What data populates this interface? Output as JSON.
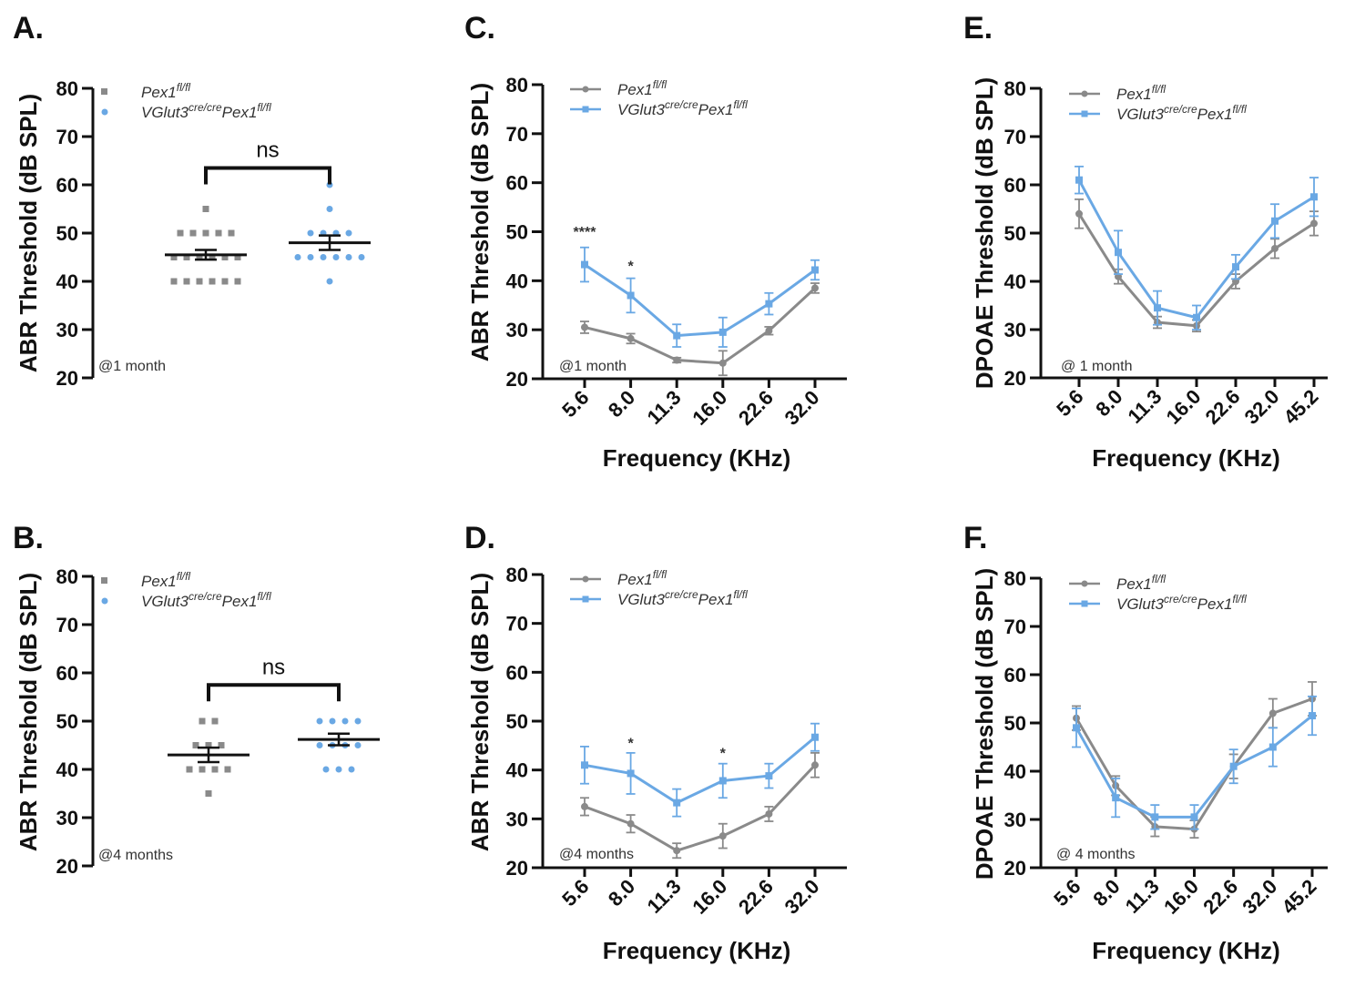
{
  "colors": {
    "control": "#8a8a8a",
    "mutant": "#6aa8e4",
    "axis": "#111111"
  },
  "chart_data": [
    {
      "panel": "A.",
      "type": "scatter",
      "ylabel": "ABR Threshold (dB SPL)",
      "ylim": [
        20,
        80
      ],
      "yticks": [
        "20",
        "30",
        "40",
        "50",
        "60",
        "70",
        "80"
      ],
      "legend": [
        {
          "base": "Pex1",
          "sup": "fl/fl"
        },
        {
          "base": "VGlut3",
          "sup": "cre/cre",
          "base2": "Pex1",
          "sup2": "fl/fl"
        }
      ],
      "age_label": "@1 month",
      "significance": "ns",
      "groups": [
        {
          "name": "Pex1 fl/fl",
          "points": [
            55,
            50,
            50,
            50,
            50,
            50,
            45,
            45,
            45,
            45,
            45,
            45,
            40,
            40,
            40,
            40,
            40,
            40
          ],
          "mean": 45.5,
          "sem": 1.0
        },
        {
          "name": "VGlut3 cre/cre Pex1 fl/fl",
          "points": [
            60,
            55,
            50,
            50,
            50,
            50,
            45,
            45,
            45,
            45,
            45,
            45,
            40
          ],
          "mean": 48,
          "sem": 1.5
        }
      ]
    },
    {
      "panel": "B.",
      "type": "scatter",
      "ylabel": "ABR Threshold (dB SPL)",
      "ylim": [
        20,
        80
      ],
      "yticks": [
        "20",
        "30",
        "40",
        "50",
        "60",
        "70",
        "80"
      ],
      "legend": [
        {
          "base": "Pex1",
          "sup": "fl/fl"
        },
        {
          "base": "VGlut3",
          "sup": "cre/cre",
          "base2": "Pex1",
          "sup2": "fl/fl"
        }
      ],
      "age_label": "@4 months",
      "significance": "ns",
      "groups": [
        {
          "name": "Pex1 fl/fl",
          "points": [
            50,
            50,
            45,
            45,
            45,
            40,
            40,
            40,
            40,
            35
          ],
          "mean": 43,
          "sem": 1.5
        },
        {
          "name": "VGlut3 cre/cre Pex1 fl/fl",
          "points": [
            50,
            50,
            50,
            50,
            45,
            45,
            45,
            45,
            40,
            40,
            40
          ],
          "mean": 46.2,
          "sem": 1.2
        }
      ]
    },
    {
      "panel": "C.",
      "type": "line",
      "xlabel": "Frequency (KHz)",
      "ylabel": "ABR Threshold (dB SPL)",
      "ylim": [
        20,
        80
      ],
      "yticks": [
        "20",
        "30",
        "40",
        "50",
        "60",
        "70",
        "80"
      ],
      "categories": [
        "5.6",
        "8.0",
        "11.3",
        "16.0",
        "22.6",
        "32.0"
      ],
      "legend": [
        {
          "base": "Pex1",
          "sup": "fl/fl"
        },
        {
          "base": "VGlut3",
          "sup": "cre/cre",
          "base2": "Pex1",
          "sup2": "fl/fl"
        }
      ],
      "age_label": "@1 month",
      "annotations": [
        {
          "index": 0,
          "y": 49,
          "text": "****"
        },
        {
          "index": 1,
          "y": 42,
          "text": "*"
        }
      ],
      "series": [
        {
          "name": "Pex1 fl/fl",
          "values": [
            30.5,
            28.2,
            23.8,
            23.2,
            29.8,
            38.5
          ],
          "errors": [
            1.2,
            1.0,
            0.5,
            2.5,
            0.8,
            1.0
          ]
        },
        {
          "name": "VGlut3 cre/cre Pex1 fl/fl",
          "values": [
            43.3,
            37.0,
            28.8,
            29.5,
            35.3,
            42.2
          ],
          "errors": [
            3.5,
            3.5,
            2.3,
            3.0,
            2.2,
            2.0
          ]
        }
      ]
    },
    {
      "panel": "D.",
      "type": "line",
      "xlabel": "Frequency (KHz)",
      "ylabel": "ABR Threshold (dB SPL)",
      "ylim": [
        20,
        80
      ],
      "yticks": [
        "20",
        "30",
        "40",
        "50",
        "60",
        "70",
        "80"
      ],
      "categories": [
        "5.6",
        "8.0",
        "11.3",
        "16.0",
        "22.6",
        "32.0"
      ],
      "legend": [
        {
          "base": "Pex1",
          "sup": "fl/fl"
        },
        {
          "base": "VGlut3",
          "sup": "cre/cre",
          "base2": "Pex1",
          "sup2": "fl/fl"
        }
      ],
      "age_label": "@4 months",
      "annotations": [
        {
          "index": 1,
          "y": 44.5,
          "text": "*"
        },
        {
          "index": 3,
          "y": 42.5,
          "text": "*"
        }
      ],
      "series": [
        {
          "name": "Pex1 fl/fl",
          "values": [
            32.5,
            29.0,
            23.5,
            26.5,
            31.0,
            41.0
          ],
          "errors": [
            1.8,
            1.8,
            1.5,
            2.5,
            1.5,
            2.5
          ]
        },
        {
          "name": "VGlut3 cre/cre Pex1 fl/fl",
          "values": [
            41.0,
            39.3,
            33.3,
            37.8,
            38.8,
            46.7
          ],
          "errors": [
            3.8,
            4.2,
            2.8,
            3.5,
            2.5,
            2.8
          ]
        }
      ]
    },
    {
      "panel": "E.",
      "type": "line",
      "xlabel": "Frequency (KHz)",
      "ylabel": "DPOAE Threshold (dB SPL)",
      "ylim": [
        20,
        80
      ],
      "yticks": [
        "20",
        "30",
        "40",
        "50",
        "60",
        "70",
        "80"
      ],
      "categories": [
        "5.6",
        "8.0",
        "11.3",
        "16.0",
        "22.6",
        "32.0",
        "45.2"
      ],
      "legend": [
        {
          "base": "Pex1",
          "sup": "fl/fl"
        },
        {
          "base": "VGlut3",
          "sup": "cre/cre",
          "base2": "Pex1",
          "sup2": "fl/fl"
        }
      ],
      "age_label": "@ 1 month",
      "annotations": [],
      "series": [
        {
          "name": "Pex1 fl/fl",
          "values": [
            54.0,
            41.0,
            31.5,
            30.8,
            40.0,
            46.8,
            52.0
          ],
          "errors": [
            3.0,
            1.5,
            1.2,
            1.2,
            1.5,
            2.0,
            2.5
          ]
        },
        {
          "name": "VGlut3 cre/cre Pex1 fl/fl",
          "values": [
            61.0,
            46.0,
            34.5,
            32.5,
            43.0,
            52.5,
            57.5
          ],
          "errors": [
            2.8,
            4.5,
            3.5,
            2.5,
            2.5,
            3.5,
            4.0
          ]
        }
      ]
    },
    {
      "panel": "F.",
      "type": "line",
      "xlabel": "Frequency (KHz)",
      "ylabel": "DPOAE Threshold (dB SPL)",
      "ylim": [
        20,
        80
      ],
      "yticks": [
        "20",
        "30",
        "40",
        "50",
        "60",
        "70",
        "80"
      ],
      "categories": [
        "5.6",
        "8.0",
        "11.3",
        "16.0",
        "22.6",
        "32.0",
        "45.2"
      ],
      "legend": [
        {
          "base": "Pex1",
          "sup": "fl/fl"
        },
        {
          "base": "VGlut3",
          "sup": "cre/cre",
          "base2": "Pex1",
          "sup2": "fl/fl"
        }
      ],
      "age_label": "@ 4 months",
      "annotations": [],
      "series": [
        {
          "name": "Pex1 fl/fl",
          "values": [
            51.0,
            37.0,
            28.5,
            28.0,
            41.0,
            52.0,
            55.0
          ],
          "errors": [
            2.5,
            2.0,
            2.0,
            1.8,
            2.5,
            3.0,
            3.5
          ]
        },
        {
          "name": "VGlut3 cre/cre Pex1 fl/fl",
          "values": [
            49.0,
            34.5,
            30.5,
            30.5,
            41.0,
            45.0,
            51.5
          ],
          "errors": [
            4.0,
            4.0,
            2.5,
            2.5,
            3.5,
            4.0,
            4.0
          ]
        }
      ]
    }
  ]
}
